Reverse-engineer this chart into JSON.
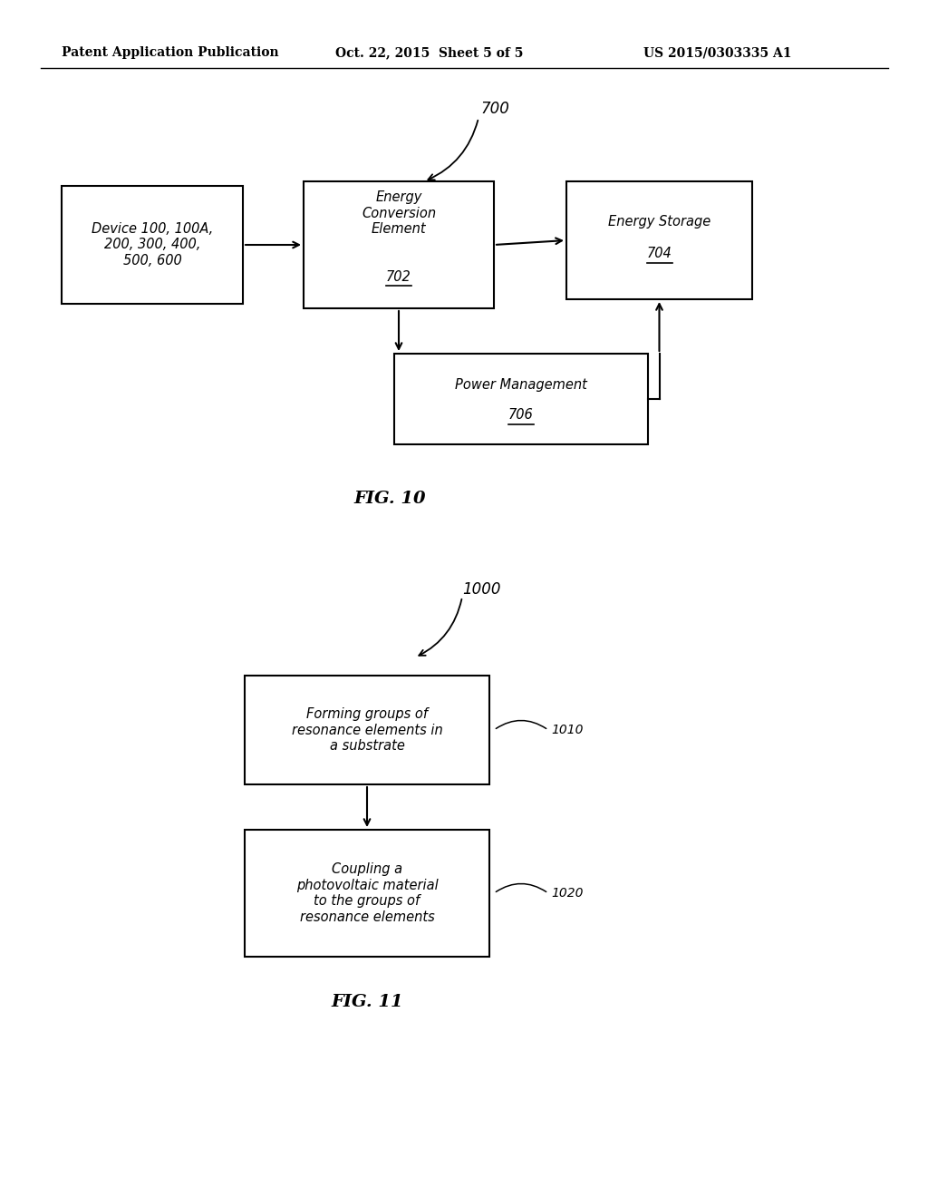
{
  "bg_color": "#ffffff",
  "header_left": "Patent Application Publication",
  "header_mid": "Oct. 22, 2015  Sheet 5 of 5",
  "header_right": "US 2015/0303335 A1",
  "fig10_label": "FIG. 10",
  "fig11_label": "FIG. 11",
  "fig10_ref": "700",
  "fig11_ref": "1000",
  "box1_text": "Device 100, 100A,\n200, 300, 400,\n500, 600",
  "box2_line1": "Energy",
  "box2_line2": "Conversion",
  "box2_line3": "Element",
  "box2_num": "702",
  "box3_line1": "Energy Storage",
  "box3_num": "704",
  "box4_line1": "Power Management",
  "box4_num": "706",
  "box5_text": "Forming groups of\nresonance elements in\na substrate",
  "box5_ref": "1010",
  "box6_text": "Coupling a\nphotovoltaic material\nto the groups of\nresonance elements",
  "box6_ref": "1020"
}
